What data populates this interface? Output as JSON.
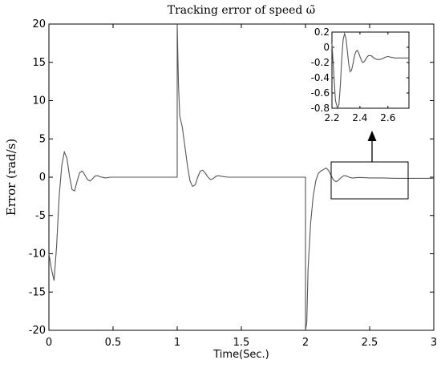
{
  "chart_data": [
    {
      "type": "line",
      "title": "Tracking error of speed ω̃",
      "xlabel": "Time(Sec.)",
      "ylabel": "Error (rad/s)",
      "xlim": [
        0,
        3
      ],
      "ylim": [
        -20,
        20
      ],
      "xticks": [
        "0",
        "0.5",
        "1",
        "1.5",
        "2",
        "2.5",
        "3"
      ],
      "yticks": [
        "-20",
        "-15",
        "-10",
        "-5",
        "0",
        "5",
        "10",
        "15",
        "20"
      ],
      "grid": false,
      "series": [
        {
          "x": [
            0,
            0.02,
            0.04,
            0.06,
            0.08,
            0.1,
            0.12,
            0.14,
            0.16,
            0.18,
            0.2,
            0.22,
            0.24,
            0.26,
            0.28,
            0.3,
            0.32,
            0.34,
            0.36,
            0.38,
            0.4,
            0.44,
            0.48,
            0.55,
            0.65,
            1.0,
            1.0,
            1.01,
            1.02,
            1.04,
            1.06,
            1.08,
            1.1,
            1.12,
            1.14,
            1.16,
            1.18,
            1.2,
            1.22,
            1.24,
            1.26,
            1.28,
            1.3,
            1.32,
            1.35,
            1.4,
            1.5,
            1.7,
            2.0,
            2.0,
            2.01,
            2.02,
            2.04,
            2.06,
            2.08,
            2.1,
            2.12,
            2.14,
            2.16,
            2.18,
            2.2,
            2.22,
            2.24,
            2.26,
            2.28,
            2.3,
            2.32,
            2.34,
            2.36,
            2.38,
            2.4,
            2.44,
            2.5,
            2.6,
            2.7,
            2.8,
            3.0
          ],
          "y": [
            -10,
            -12,
            -13.5,
            -9,
            -2.5,
            1.5,
            3.3,
            2.5,
            0.2,
            -1.6,
            -1.8,
            -0.5,
            0.6,
            0.8,
            0.3,
            -0.3,
            -0.5,
            -0.2,
            0.15,
            0.2,
            0.05,
            -0.1,
            0,
            0,
            0,
            0,
            20,
            12,
            8,
            6.5,
            4,
            1.5,
            -0.5,
            -1.2,
            -1,
            0,
            0.8,
            0.9,
            0.5,
            0,
            -0.3,
            -0.2,
            0.1,
            0.2,
            0.1,
            0,
            0,
            0,
            0,
            -20,
            -19,
            -12,
            -6,
            -2.5,
            -0.5,
            0.5,
            0.8,
            1.0,
            1.2,
            0.9,
            0.2,
            -0.4,
            -0.6,
            -0.35,
            0,
            0.2,
            0.15,
            0,
            -0.1,
            -0.1,
            -0.05,
            -0.05,
            -0.1,
            -0.1,
            -0.15,
            -0.15,
            -0.15
          ]
        }
      ]
    },
    {
      "type": "line",
      "title": "",
      "xlim": [
        2.2,
        2.75
      ],
      "ylim": [
        -0.8,
        0.2
      ],
      "xticks": [
        "2.2",
        "2.4",
        "2.6"
      ],
      "yticks": [
        "0.2",
        "0",
        "-0.2",
        "-0.4",
        "-0.6",
        "-0.8"
      ],
      "grid": false,
      "series": [
        {
          "x": [
            2.2,
            2.225,
            2.24,
            2.25,
            2.26,
            2.27,
            2.28,
            2.29,
            2.3,
            2.31,
            2.32,
            2.33,
            2.34,
            2.35,
            2.36,
            2.37,
            2.38,
            2.39,
            2.4,
            2.41,
            2.42,
            2.43,
            2.44,
            2.45,
            2.46,
            2.48,
            2.5,
            2.52,
            2.54,
            2.56,
            2.58,
            2.6,
            2.62,
            2.65,
            2.7,
            2.75
          ],
          "y": [
            0.05,
            -0.7,
            -0.85,
            -0.75,
            -0.5,
            -0.15,
            0.1,
            0.18,
            0.12,
            -0.05,
            -0.22,
            -0.32,
            -0.3,
            -0.22,
            -0.12,
            -0.06,
            -0.04,
            -0.07,
            -0.12,
            -0.17,
            -0.2,
            -0.19,
            -0.16,
            -0.13,
            -0.11,
            -0.11,
            -0.14,
            -0.16,
            -0.16,
            -0.15,
            -0.13,
            -0.12,
            -0.13,
            -0.14,
            -0.14,
            -0.14
          ]
        }
      ]
    }
  ]
}
